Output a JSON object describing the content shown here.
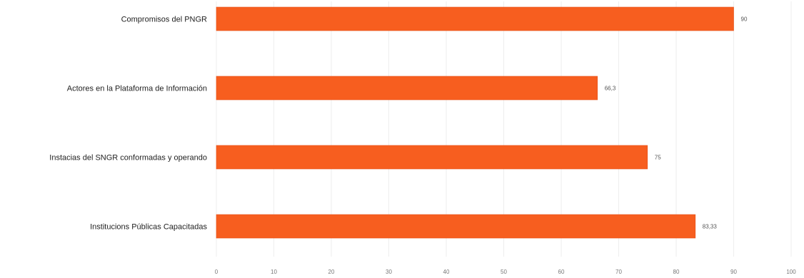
{
  "chart_data": {
    "type": "bar",
    "orientation": "horizontal",
    "categories": [
      "Compromisos del PNGR",
      "Actores en la Plataforma de Información",
      "Instacias del SNGR conformadas y operando",
      "Institucions Públicas Capacitadas"
    ],
    "values": [
      90,
      66.3,
      75,
      83.33
    ],
    "data_labels": [
      "90",
      "66,3",
      "75",
      "83,33"
    ],
    "xlim": [
      0,
      100
    ],
    "x_ticks": [
      0,
      10,
      20,
      30,
      40,
      50,
      60,
      70,
      80,
      90,
      100
    ],
    "x_tick_labels": [
      "0",
      "10",
      "20",
      "30",
      "40",
      "50",
      "60",
      "70",
      "80",
      "90",
      "100"
    ],
    "grid": true,
    "legend": "none",
    "colors": {
      "bar": "#F75E1F",
      "bar_edge": "#E4521A"
    }
  }
}
